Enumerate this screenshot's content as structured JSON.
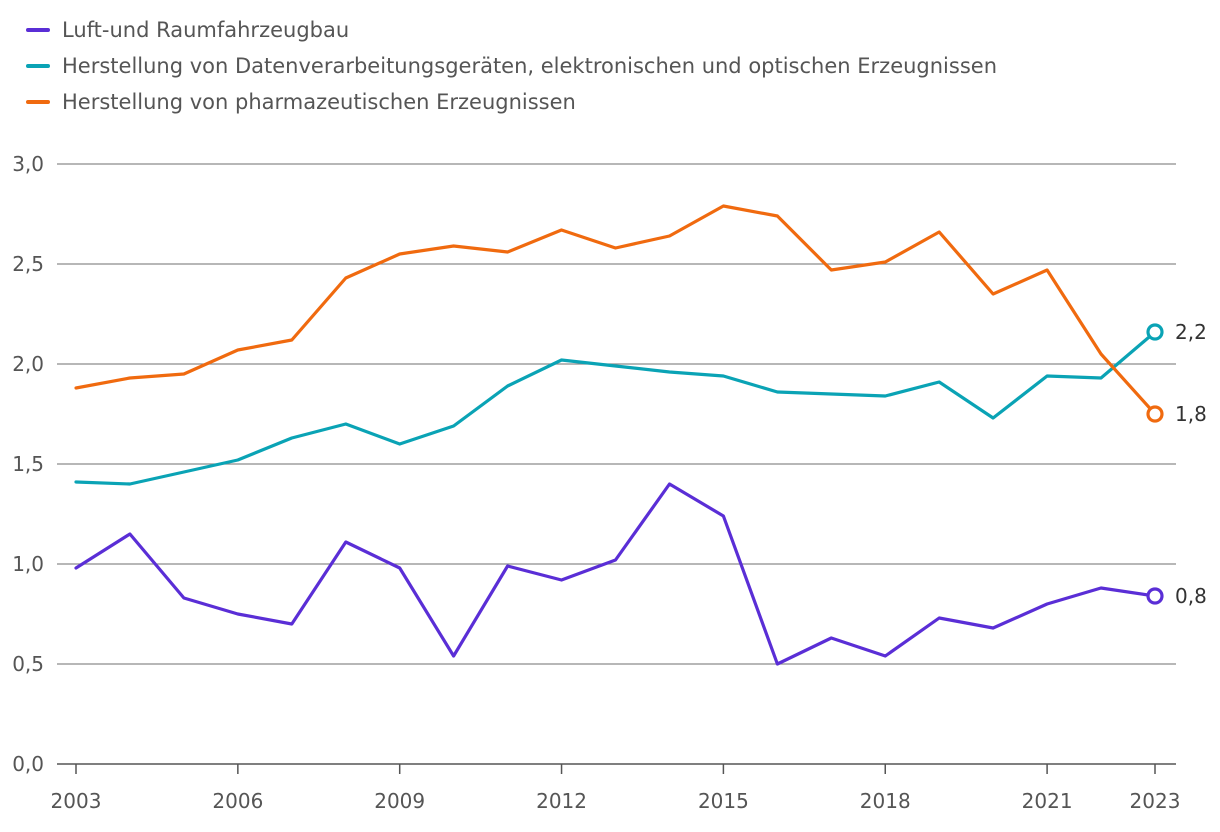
{
  "chart_data": {
    "type": "line",
    "title": "",
    "xlabel": "",
    "ylabel": "",
    "x": [
      2003,
      2004,
      2005,
      2006,
      2007,
      2008,
      2009,
      2010,
      2011,
      2012,
      2013,
      2014,
      2015,
      2016,
      2017,
      2018,
      2019,
      2020,
      2021,
      2022,
      2023
    ],
    "ylim": [
      0,
      3
    ],
    "xticks": [
      2003,
      2006,
      2009,
      2012,
      2015,
      2018,
      2021,
      2023
    ],
    "xtick_labels": [
      "2003",
      "2006",
      "2009",
      "2012",
      "2015",
      "2018",
      "2021",
      "2023"
    ],
    "yticks": [
      0,
      0.5,
      1,
      1.5,
      2,
      2.5,
      3
    ],
    "ytick_labels": [
      "0,0",
      "0,5",
      "1,0",
      "1,5",
      "2,0",
      "2,5",
      "3,0"
    ],
    "grid": true,
    "legend_position": "top-left",
    "series": [
      {
        "name": "Luft-und Raumfahrzeugbau",
        "color": "#5a2ed6",
        "values": [
          0.98,
          1.15,
          0.83,
          0.75,
          0.7,
          1.11,
          0.98,
          0.54,
          0.99,
          0.92,
          1.02,
          1.4,
          1.24,
          0.5,
          0.63,
          0.54,
          0.73,
          0.68,
          0.8,
          0.88,
          0.84
        ],
        "end_label": "0,8"
      },
      {
        "name": "Herstellung von Datenverarbeitungsgeräten, elektronischen und optischen Erzeugnissen",
        "color": "#0aa3b5",
        "values": [
          1.41,
          1.4,
          1.46,
          1.52,
          1.63,
          1.7,
          1.6,
          1.69,
          1.89,
          2.02,
          1.99,
          1.96,
          1.94,
          1.86,
          1.85,
          1.84,
          1.91,
          1.73,
          1.94,
          1.93,
          2.16
        ],
        "end_label": "2,2"
      },
      {
        "name": "Herstellung von pharmazeutischen Erzeugnissen",
        "color": "#f06a0f",
        "values": [
          1.88,
          1.93,
          1.95,
          2.07,
          2.12,
          2.43,
          2.55,
          2.59,
          2.56,
          2.67,
          2.58,
          2.64,
          2.79,
          2.74,
          2.47,
          2.51,
          2.66,
          2.35,
          2.47,
          2.05,
          1.75
        ],
        "end_label": "1,8"
      }
    ]
  }
}
